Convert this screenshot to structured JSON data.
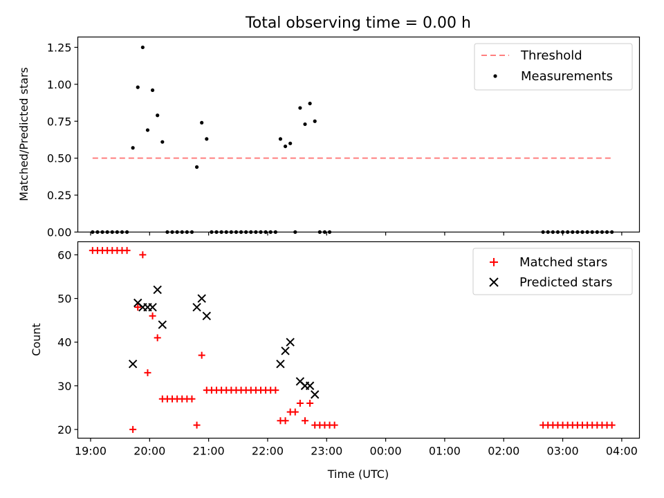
{
  "chart_data": [
    {
      "type": "scatter",
      "title": "Total observing time = 0.00 h",
      "xlabel": "",
      "ylabel": "Matched/Predicted stars",
      "xlim": [
        "18:47",
        "04:18"
      ],
      "ylim": [
        0,
        1.32
      ],
      "xticks": [
        "19:00",
        "20:00",
        "21:00",
        "22:00",
        "23:00",
        "00:00",
        "01:00",
        "02:00",
        "03:00",
        "04:00"
      ],
      "yticks": [
        "0.00",
        "0.25",
        "0.50",
        "0.75",
        "1.00",
        "1.25"
      ],
      "legend_position": "top-right",
      "grid": false,
      "series": [
        {
          "name": "Threshold",
          "style": "dashed-line",
          "color": "#ff7f7f",
          "points": [
            {
              "x": "19:02",
              "y": 0.5
            },
            {
              "x": "03:50",
              "y": 0.5
            }
          ]
        },
        {
          "name": "Measurements",
          "style": "dot",
          "color": "#000000",
          "points": [
            {
              "x": "19:02",
              "y": 0
            },
            {
              "x": "19:07",
              "y": 0
            },
            {
              "x": "19:12",
              "y": 0
            },
            {
              "x": "19:17",
              "y": 0
            },
            {
              "x": "19:22",
              "y": 0
            },
            {
              "x": "19:27",
              "y": 0
            },
            {
              "x": "19:32",
              "y": 0
            },
            {
              "x": "19:37",
              "y": 0
            },
            {
              "x": "19:43",
              "y": 0.57
            },
            {
              "x": "19:48",
              "y": 0.98
            },
            {
              "x": "19:53",
              "y": 1.25
            },
            {
              "x": "19:58",
              "y": 0.69
            },
            {
              "x": "20:03",
              "y": 0.96
            },
            {
              "x": "20:08",
              "y": 0.79
            },
            {
              "x": "20:13",
              "y": 0.61
            },
            {
              "x": "20:18",
              "y": 0
            },
            {
              "x": "20:23",
              "y": 0
            },
            {
              "x": "20:28",
              "y": 0
            },
            {
              "x": "20:33",
              "y": 0
            },
            {
              "x": "20:38",
              "y": 0
            },
            {
              "x": "20:43",
              "y": 0
            },
            {
              "x": "20:48",
              "y": 0.44
            },
            {
              "x": "20:53",
              "y": 0.74
            },
            {
              "x": "20:58",
              "y": 0.63
            },
            {
              "x": "21:03",
              "y": 0
            },
            {
              "x": "21:08",
              "y": 0
            },
            {
              "x": "21:13",
              "y": 0
            },
            {
              "x": "21:18",
              "y": 0
            },
            {
              "x": "21:23",
              "y": 0
            },
            {
              "x": "21:28",
              "y": 0
            },
            {
              "x": "21:33",
              "y": 0
            },
            {
              "x": "21:38",
              "y": 0
            },
            {
              "x": "21:43",
              "y": 0
            },
            {
              "x": "21:48",
              "y": 0
            },
            {
              "x": "21:53",
              "y": 0
            },
            {
              "x": "21:58",
              "y": 0
            },
            {
              "x": "22:03",
              "y": 0
            },
            {
              "x": "22:08",
              "y": 0
            },
            {
              "x": "22:13",
              "y": 0.63
            },
            {
              "x": "22:18",
              "y": 0.58
            },
            {
              "x": "22:23",
              "y": 0.6
            },
            {
              "x": "22:28",
              "y": 0
            },
            {
              "x": "22:33",
              "y": 0.84
            },
            {
              "x": "22:38",
              "y": 0.73
            },
            {
              "x": "22:43",
              "y": 0.87
            },
            {
              "x": "22:48",
              "y": 0.75
            },
            {
              "x": "22:53",
              "y": 0
            },
            {
              "x": "22:58",
              "y": 0
            },
            {
              "x": "23:03",
              "y": 0
            },
            {
              "x": "02:40",
              "y": 0
            },
            {
              "x": "02:45",
              "y": 0
            },
            {
              "x": "02:50",
              "y": 0
            },
            {
              "x": "02:55",
              "y": 0
            },
            {
              "x": "03:00",
              "y": 0
            },
            {
              "x": "03:05",
              "y": 0
            },
            {
              "x": "03:10",
              "y": 0
            },
            {
              "x": "03:15",
              "y": 0
            },
            {
              "x": "03:20",
              "y": 0
            },
            {
              "x": "03:25",
              "y": 0
            },
            {
              "x": "03:30",
              "y": 0
            },
            {
              "x": "03:35",
              "y": 0
            },
            {
              "x": "03:40",
              "y": 0
            },
            {
              "x": "03:45",
              "y": 0
            },
            {
              "x": "03:50",
              "y": 0
            }
          ]
        }
      ]
    },
    {
      "type": "scatter",
      "title": "",
      "xlabel": "Time (UTC)",
      "ylabel": "Count",
      "xlim": [
        "18:47",
        "04:18"
      ],
      "ylim": [
        18,
        63
      ],
      "xticks": [
        "19:00",
        "20:00",
        "21:00",
        "22:00",
        "23:00",
        "00:00",
        "01:00",
        "02:00",
        "03:00",
        "04:00"
      ],
      "yticks": [
        "20",
        "30",
        "40",
        "50",
        "60"
      ],
      "legend_position": "top-right",
      "grid": false,
      "series": [
        {
          "name": "Matched stars",
          "style": "plus",
          "color": "#ff0000",
          "points": [
            {
              "x": "19:02",
              "y": 61
            },
            {
              "x": "19:07",
              "y": 61
            },
            {
              "x": "19:12",
              "y": 61
            },
            {
              "x": "19:17",
              "y": 61
            },
            {
              "x": "19:22",
              "y": 61
            },
            {
              "x": "19:27",
              "y": 61
            },
            {
              "x": "19:32",
              "y": 61
            },
            {
              "x": "19:37",
              "y": 61
            },
            {
              "x": "19:43",
              "y": 20
            },
            {
              "x": "19:48",
              "y": 48
            },
            {
              "x": "19:53",
              "y": 60
            },
            {
              "x": "19:58",
              "y": 33
            },
            {
              "x": "20:03",
              "y": 46
            },
            {
              "x": "20:08",
              "y": 41
            },
            {
              "x": "20:13",
              "y": 27
            },
            {
              "x": "20:18",
              "y": 27
            },
            {
              "x": "20:23",
              "y": 27
            },
            {
              "x": "20:28",
              "y": 27
            },
            {
              "x": "20:33",
              "y": 27
            },
            {
              "x": "20:38",
              "y": 27
            },
            {
              "x": "20:43",
              "y": 27
            },
            {
              "x": "20:48",
              "y": 21
            },
            {
              "x": "20:53",
              "y": 37
            },
            {
              "x": "20:58",
              "y": 29
            },
            {
              "x": "21:03",
              "y": 29
            },
            {
              "x": "21:08",
              "y": 29
            },
            {
              "x": "21:13",
              "y": 29
            },
            {
              "x": "21:18",
              "y": 29
            },
            {
              "x": "21:23",
              "y": 29
            },
            {
              "x": "21:28",
              "y": 29
            },
            {
              "x": "21:33",
              "y": 29
            },
            {
              "x": "21:38",
              "y": 29
            },
            {
              "x": "21:43",
              "y": 29
            },
            {
              "x": "21:48",
              "y": 29
            },
            {
              "x": "21:53",
              "y": 29
            },
            {
              "x": "21:58",
              "y": 29
            },
            {
              "x": "22:03",
              "y": 29
            },
            {
              "x": "22:08",
              "y": 29
            },
            {
              "x": "22:13",
              "y": 22
            },
            {
              "x": "22:18",
              "y": 22
            },
            {
              "x": "22:23",
              "y": 24
            },
            {
              "x": "22:28",
              "y": 24
            },
            {
              "x": "22:33",
              "y": 26
            },
            {
              "x": "22:38",
              "y": 22
            },
            {
              "x": "22:43",
              "y": 26
            },
            {
              "x": "22:48",
              "y": 21
            },
            {
              "x": "22:53",
              "y": 21
            },
            {
              "x": "22:58",
              "y": 21
            },
            {
              "x": "23:03",
              "y": 21
            },
            {
              "x": "23:08",
              "y": 21
            },
            {
              "x": "02:40",
              "y": 21
            },
            {
              "x": "02:45",
              "y": 21
            },
            {
              "x": "02:50",
              "y": 21
            },
            {
              "x": "02:55",
              "y": 21
            },
            {
              "x": "03:00",
              "y": 21
            },
            {
              "x": "03:05",
              "y": 21
            },
            {
              "x": "03:10",
              "y": 21
            },
            {
              "x": "03:15",
              "y": 21
            },
            {
              "x": "03:20",
              "y": 21
            },
            {
              "x": "03:25",
              "y": 21
            },
            {
              "x": "03:30",
              "y": 21
            },
            {
              "x": "03:35",
              "y": 21
            },
            {
              "x": "03:40",
              "y": 21
            },
            {
              "x": "03:45",
              "y": 21
            },
            {
              "x": "03:50",
              "y": 21
            }
          ]
        },
        {
          "name": "Predicted stars",
          "style": "x",
          "color": "#000000",
          "points": [
            {
              "x": "19:43",
              "y": 35
            },
            {
              "x": "19:48",
              "y": 49
            },
            {
              "x": "19:53",
              "y": 48
            },
            {
              "x": "19:58",
              "y": 48
            },
            {
              "x": "20:03",
              "y": 48
            },
            {
              "x": "20:08",
              "y": 52
            },
            {
              "x": "20:13",
              "y": 44
            },
            {
              "x": "20:48",
              "y": 48
            },
            {
              "x": "20:53",
              "y": 50
            },
            {
              "x": "20:58",
              "y": 46
            },
            {
              "x": "22:13",
              "y": 35
            },
            {
              "x": "22:18",
              "y": 38
            },
            {
              "x": "22:23",
              "y": 40
            },
            {
              "x": "22:33",
              "y": 31
            },
            {
              "x": "22:38",
              "y": 30
            },
            {
              "x": "22:43",
              "y": 30
            },
            {
              "x": "22:48",
              "y": 28
            }
          ]
        }
      ]
    }
  ]
}
